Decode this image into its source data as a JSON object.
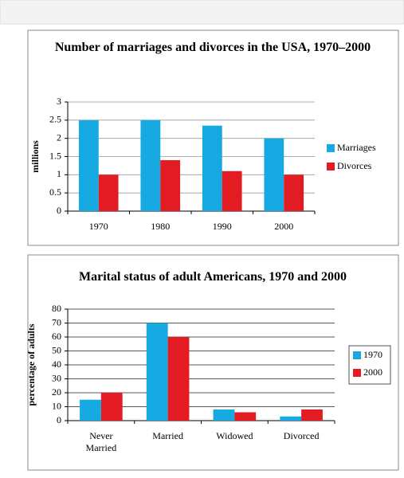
{
  "chart_data": [
    {
      "type": "bar",
      "title": "Number of marriages and divorces in the USA, 1970–2000",
      "y_label": "millions",
      "categories": [
        "1970",
        "1980",
        "1990",
        "2000"
      ],
      "series": [
        {
          "name": "Marriages",
          "color": "#17a9e1",
          "values": [
            2.5,
            2.5,
            2.35,
            2.0
          ]
        },
        {
          "name": "Divorces",
          "color": "#e31b23",
          "values": [
            1.0,
            1.4,
            1.1,
            1.0
          ]
        }
      ],
      "ylim": [
        0,
        3
      ],
      "yticks": [
        0,
        0.5,
        1,
        1.5,
        2,
        2.5,
        3
      ],
      "grid": true,
      "legend": "right"
    },
    {
      "type": "bar",
      "title": "Marital status of adult Americans, 1970 and 2000",
      "y_label": "percentage of adults",
      "categories": [
        "Never Married",
        "Married",
        "Widowed",
        "Divorced"
      ],
      "series": [
        {
          "name": "1970",
          "color": "#17a9e1",
          "values": [
            15,
            70,
            8,
            3
          ]
        },
        {
          "name": "2000",
          "color": "#e31b23",
          "values": [
            20,
            60,
            6,
            8
          ]
        }
      ],
      "ylim": [
        0,
        80
      ],
      "yticks": [
        0,
        10,
        20,
        30,
        40,
        50,
        60,
        70,
        80
      ],
      "grid": true,
      "legend": "right"
    }
  ]
}
